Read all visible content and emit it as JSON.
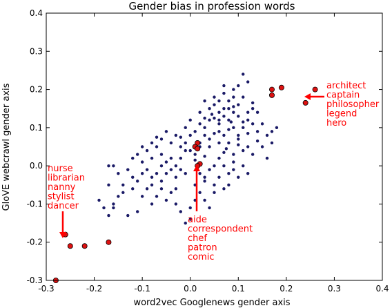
{
  "chart_data": {
    "type": "scatter",
    "title": "Gender bias in profession words",
    "xlabel": "word2vec Googlenews gender axis",
    "ylabel": "GloVE webcrawl gender axis",
    "xlim": [
      -0.3,
      0.4
    ],
    "ylim": [
      -0.3,
      0.4
    ],
    "xticks": [
      "-0.3",
      "-0.2",
      "-0.1",
      "0.0",
      "0.1",
      "0.2",
      "0.3",
      "0.4"
    ],
    "yticks": [
      "-0.3",
      "-0.2",
      "-0.1",
      "0.0",
      "0.1",
      "0.2",
      "0.3",
      "0.4"
    ],
    "grid": false,
    "colors": {
      "points": "#1a1a66",
      "highlight": "#dd1111",
      "annotation": "#ff0000"
    },
    "series": [
      {
        "role": "profession-words",
        "points": [
          [
            0.11,
            0.24
          ],
          [
            0.12,
            0.22
          ],
          [
            0.1,
            0.21
          ],
          [
            0.09,
            0.2
          ],
          [
            0.07,
            0.21
          ],
          [
            0.11,
            0.18
          ],
          [
            0.09,
            0.18
          ],
          [
            0.07,
            0.19
          ],
          [
            0.08,
            0.17
          ],
          [
            0.1,
            0.16
          ],
          [
            0.09,
            0.155
          ],
          [
            0.07,
            0.15
          ],
          [
            0.05,
            0.16
          ],
          [
            0.04,
            0.15
          ],
          [
            0.06,
            0.14
          ],
          [
            0.07,
            0.13
          ],
          [
            0.05,
            0.125
          ],
          [
            0.08,
            0.12
          ],
          [
            0.1,
            0.13
          ],
          [
            0.11,
            0.1
          ],
          [
            0.12,
            0.12
          ],
          [
            0.13,
            0.15
          ],
          [
            0.14,
            0.14
          ],
          [
            0.13,
            0.11
          ],
          [
            0.15,
            0.11
          ],
          [
            0.14,
            0.09
          ],
          [
            0.12,
            0.085
          ],
          [
            0.09,
            0.1
          ],
          [
            0.06,
            0.11
          ],
          [
            0.04,
            0.12
          ],
          [
            0.03,
            0.1
          ],
          [
            0.02,
            0.11
          ],
          [
            0.0,
            0.12
          ],
          [
            -0.01,
            0.1
          ],
          [
            0.01,
            0.09
          ],
          [
            0.03,
            0.08
          ],
          [
            0.05,
            0.085
          ],
          [
            0.07,
            0.08
          ],
          [
            0.06,
            0.06
          ],
          [
            0.04,
            0.05
          ],
          [
            0.02,
            0.06
          ],
          [
            0.08,
            0.06
          ],
          [
            0.1,
            0.055
          ],
          [
            0.11,
            0.04
          ],
          [
            0.09,
            0.03
          ],
          [
            0.07,
            0.035
          ],
          [
            0.06,
            0.02
          ],
          [
            0.05,
            0.0
          ],
          [
            0.04,
            -0.01
          ],
          [
            0.07,
            0.0
          ],
          [
            0.09,
            -0.01
          ],
          [
            0.11,
            0.0
          ],
          [
            0.12,
            -0.02
          ],
          [
            0.1,
            -0.03
          ],
          [
            0.08,
            -0.02
          ],
          [
            0.06,
            -0.03
          ],
          [
            0.05,
            -0.05
          ],
          [
            0.07,
            -0.06
          ],
          [
            0.03,
            -0.04
          ],
          [
            0.02,
            -0.02
          ],
          [
            0.01,
            0.03
          ],
          [
            -0.01,
            0.04
          ],
          [
            -0.02,
            0.05
          ],
          [
            -0.04,
            0.06
          ],
          [
            -0.03,
            0.08
          ],
          [
            -0.05,
            0.09
          ],
          [
            -0.06,
            0.07
          ],
          [
            -0.07,
            0.05
          ],
          [
            -0.08,
            0.06
          ],
          [
            -0.09,
            0.04
          ],
          [
            -0.1,
            0.05
          ],
          [
            -0.11,
            0.03
          ],
          [
            -0.12,
            0.02
          ],
          [
            -0.1,
            0.01
          ],
          [
            -0.08,
            0.02
          ],
          [
            -0.06,
            0.03
          ],
          [
            -0.05,
            0.01
          ],
          [
            -0.04,
            0.02
          ],
          [
            -0.03,
            0.0
          ],
          [
            -0.02,
            -0.01
          ],
          [
            -0.01,
            -0.02
          ],
          [
            -0.03,
            -0.03
          ],
          [
            -0.05,
            -0.02
          ],
          [
            -0.06,
            -0.04
          ],
          [
            -0.07,
            -0.02
          ],
          [
            -0.08,
            -0.03
          ],
          [
            -0.09,
            -0.01
          ],
          [
            -0.1,
            -0.02
          ],
          [
            -0.11,
            -0.04
          ],
          [
            -0.12,
            -0.03
          ],
          [
            -0.13,
            -0.01
          ],
          [
            -0.14,
            -0.05
          ],
          [
            -0.15,
            -0.02
          ],
          [
            -0.16,
            0.0
          ],
          [
            -0.17,
            -0.05
          ],
          [
            -0.15,
            -0.08
          ],
          [
            -0.16,
            -0.1
          ],
          [
            -0.14,
            -0.07
          ],
          [
            -0.12,
            -0.06
          ],
          [
            -0.1,
            -0.08
          ],
          [
            -0.09,
            -0.06
          ],
          [
            -0.07,
            -0.08
          ],
          [
            -0.05,
            -0.09
          ],
          [
            -0.04,
            -0.07
          ],
          [
            -0.03,
            -0.1
          ],
          [
            -0.02,
            -0.12
          ],
          [
            0.0,
            -0.11
          ],
          [
            0.01,
            -0.09
          ],
          [
            0.02,
            -0.07
          ],
          [
            0.03,
            -0.09
          ],
          [
            0.04,
            -0.11
          ],
          [
            0.0,
            -0.14
          ],
          [
            -0.01,
            -0.15
          ],
          [
            -0.08,
            -0.1
          ],
          [
            -0.11,
            -0.12
          ],
          [
            -0.13,
            -0.13
          ],
          [
            -0.17,
            -0.13
          ],
          [
            -0.19,
            -0.09
          ],
          [
            -0.16,
            -0.11
          ],
          [
            -0.18,
            -0.11
          ],
          [
            -0.17,
            0.0
          ],
          [
            0.0,
            0.08
          ],
          [
            0.02,
            0.14
          ],
          [
            0.05,
            0.18
          ],
          [
            0.08,
            0.095
          ],
          [
            0.1,
            0.07
          ],
          [
            0.12,
            0.05
          ],
          [
            0.13,
            0.03
          ],
          [
            0.15,
            0.05
          ],
          [
            0.16,
            0.08
          ],
          [
            0.16,
            0.02
          ],
          [
            0.17,
            0.09
          ],
          [
            0.18,
            0.1
          ],
          [
            0.17,
            0.06
          ],
          [
            0.14,
            0.065
          ],
          [
            0.11,
            0.115
          ],
          [
            0.1,
            0.08
          ],
          [
            0.06,
            0.09
          ],
          [
            0.04,
            0.07
          ],
          [
            0.02,
            0.05
          ],
          [
            0.0,
            0.04
          ],
          [
            -0.02,
            0.02
          ],
          [
            -0.04,
            -0.01
          ],
          [
            -0.06,
            0.0
          ],
          [
            -0.08,
            -0.05
          ],
          [
            -0.06,
            -0.06
          ],
          [
            -0.03,
            -0.06
          ],
          [
            0.01,
            -0.05
          ],
          [
            0.03,
            -0.03
          ],
          [
            0.05,
            -0.07
          ],
          [
            0.08,
            -0.05
          ],
          [
            0.09,
            0.01
          ],
          [
            0.03,
            0.17
          ],
          [
            0.06,
            0.17
          ],
          [
            0.09,
            0.14
          ],
          [
            0.08,
            0.15
          ],
          [
            0.13,
            0.165
          ],
          [
            0.12,
            0.14
          ],
          [
            0.01,
            0.015
          ],
          [
            -0.01,
            0.06
          ],
          [
            0.085,
            0.115
          ],
          [
            0.06,
            0.12
          ],
          [
            0.045,
            0.135
          ],
          [
            0.03,
            0.125
          ],
          [
            0.075,
            0.045
          ],
          [
            0.03,
            0.025
          ],
          [
            -0.02,
            0.075
          ],
          [
            -0.07,
            0.075
          ]
        ]
      },
      {
        "role": "highlighted-words",
        "points": [
          [
            0.26,
            0.2
          ],
          [
            0.24,
            0.165
          ],
          [
            0.19,
            0.205
          ],
          [
            0.17,
            0.2
          ],
          [
            0.17,
            0.185
          ],
          [
            0.015,
            0.06
          ],
          [
            0.01,
            0.05
          ],
          [
            0.015,
            0.045
          ],
          [
            0.02,
            0.005
          ],
          [
            0.015,
            0.0
          ],
          [
            -0.28,
            -0.3
          ],
          [
            -0.26,
            -0.18
          ],
          [
            -0.25,
            -0.21
          ],
          [
            -0.22,
            -0.21
          ],
          [
            -0.17,
            -0.2
          ]
        ]
      }
    ],
    "annotations": [
      {
        "group": "male",
        "words": [
          "architect",
          "captain",
          "philosopher",
          "legend",
          "hero"
        ],
        "arrow": "left"
      },
      {
        "group": "neutral",
        "words": [
          "aide",
          "correspondent",
          "chef",
          "patron",
          "comic"
        ],
        "arrow": "up"
      },
      {
        "group": "female",
        "words": [
          "nurse",
          "librarian",
          "nanny",
          "stylist",
          "dancer"
        ],
        "arrow": "down"
      }
    ]
  }
}
